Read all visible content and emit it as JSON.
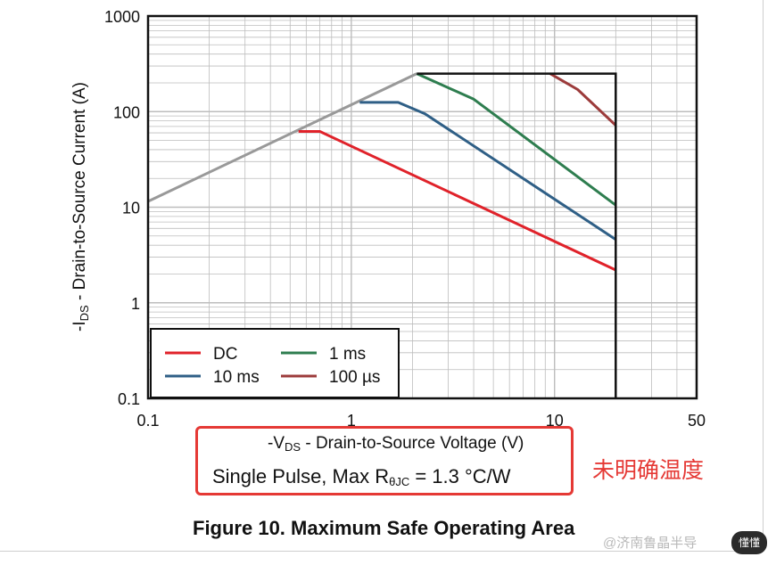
{
  "chart_data": {
    "type": "line",
    "title": "",
    "xlabel_prefix": "-V",
    "xlabel_sub": "DS",
    "xlabel_rest": " - Drain-to-Source Voltage (V)",
    "ylabel_prefix": "-I",
    "ylabel_sub": "DS",
    "ylabel_rest": " - Drain-to-Source Current (A)",
    "xscale": "log",
    "yscale": "log",
    "xlim": [
      0.1,
      50
    ],
    "ylim": [
      0.1,
      1000
    ],
    "xticks": [
      0.1,
      1,
      10,
      50
    ],
    "xtick_labels": [
      "0.1",
      "1",
      "10",
      "50"
    ],
    "yticks": [
      0.1,
      1,
      10,
      100,
      1000
    ],
    "ytick_labels": [
      "0.1",
      "1",
      "10",
      "100",
      "1000"
    ],
    "grid": true,
    "legend_position": "bottom-left",
    "series": [
      {
        "name": "DC",
        "color": "#e0222a",
        "x": [
          0.55,
          0.7,
          20
        ],
        "y": [
          62,
          62,
          2.2
        ]
      },
      {
        "name": "10 ms",
        "color": "#2f5f86",
        "x": [
          1.1,
          1.7,
          2.3,
          20
        ],
        "y": [
          125,
          125,
          95,
          4.6
        ]
      },
      {
        "name": "1 ms",
        "color": "#2e7d4f",
        "x": [
          2.1,
          4,
          20
        ],
        "y": [
          250,
          135,
          10.5
        ]
      },
      {
        "name": "100 µs",
        "color": "#9c3b3b",
        "x": [
          9.5,
          13,
          20
        ],
        "y": [
          250,
          170,
          72
        ]
      }
    ],
    "limit_line": {
      "color": "#999999",
      "x": [
        0.1,
        2.1
      ],
      "y": [
        11.5,
        250
      ]
    },
    "boundary": {
      "color": "#111111",
      "x": [
        2.1,
        20,
        20
      ],
      "y": [
        250,
        250,
        0.1
      ]
    }
  },
  "caption": {
    "condition_prefix": "Single Pulse, Max R",
    "condition_sub": "θJC",
    "condition_rest": " = 1.3 °C/W"
  },
  "annotation": "未明确温度",
  "figure_title": "Figure 10. Maximum Safe Operating Area",
  "watermark": "@济南鲁晶半导",
  "watermark_badge": "懂懂",
  "colors": {
    "highlight": "#e53935",
    "grid": "#bdbdbd"
  }
}
